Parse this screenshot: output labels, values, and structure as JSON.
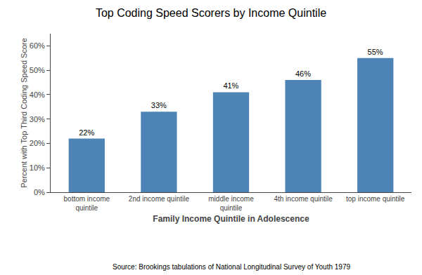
{
  "chart_data": {
    "type": "bar",
    "title": "Top Coding Speed Scorers by Income Quintile",
    "categories": [
      "bottom income\nquintile",
      "2nd income quintile",
      "middle income\nquintile",
      "4th income quintile",
      "top income quintile"
    ],
    "values": [
      0.22,
      0.33,
      0.41,
      0.46,
      0.55
    ],
    "value_labels": [
      "22%",
      "33%",
      "41%",
      "46%",
      "55%"
    ],
    "data_labels": true,
    "color": "#4E84B5",
    "xlabel": "Family Income Quintile in Adolescence",
    "ylabel": "Percent with Top Third Coding Speed Score",
    "annotations": [
      "Source: Brookings tabulations of National Longitudinal Survey of Youth 1979"
    ],
    "ylim": [
      0,
      0.65
    ],
    "yticks": [
      {
        "value": 0.0,
        "label": "0%"
      },
      {
        "value": 0.1,
        "label": "10%"
      },
      {
        "value": 0.2,
        "label": "20%"
      },
      {
        "value": 0.3,
        "label": "30%"
      },
      {
        "value": 0.4,
        "label": "40%"
      },
      {
        "value": 0.5,
        "label": "50%"
      },
      {
        "value": 0.6,
        "label": "60%"
      }
    ],
    "grid": false
  }
}
